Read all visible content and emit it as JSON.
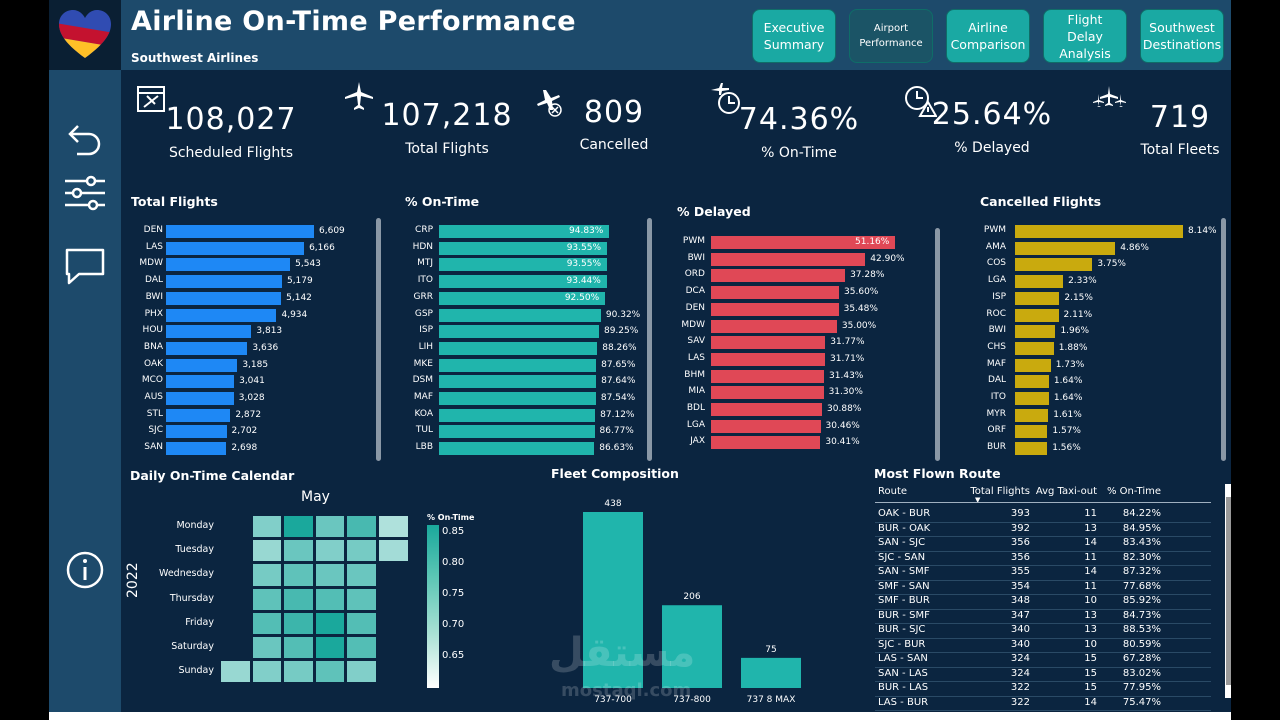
{
  "header": {
    "title": "Airline On-Time Performance",
    "subtitle": "Southwest Airlines",
    "nav": [
      "Executive Summary",
      "Airport Performance",
      "Airline Comparison",
      "Flight Delay Analysis",
      "Southwest Destinations"
    ],
    "active_nav": "Airport Performance"
  },
  "kpis": {
    "scheduled": {
      "value": "108,027",
      "label": "Scheduled Flights"
    },
    "total": {
      "value": "107,218",
      "label": "Total Flights"
    },
    "cancelled": {
      "value": "809",
      "label": "Cancelled"
    },
    "ontime": {
      "value": "74.36%",
      "label": "% On-Time"
    },
    "delayed": {
      "value": "25.64%",
      "label": "% Delayed"
    },
    "fleets": {
      "value": "719",
      "label": "Total Fleets"
    }
  },
  "panels": {
    "total_flights": {
      "title": "Total Flights",
      "color": "#1e88f5",
      "max": 6609,
      "rows": [
        [
          "DEN",
          6609,
          "6,609"
        ],
        [
          "LAS",
          6166,
          "6,166"
        ],
        [
          "MDW",
          5543,
          "5,543"
        ],
        [
          "DAL",
          5179,
          "5,179"
        ],
        [
          "BWI",
          5142,
          "5,142"
        ],
        [
          "PHX",
          4934,
          "4,934"
        ],
        [
          "HOU",
          3813,
          "3,813"
        ],
        [
          "BNA",
          3636,
          "3,636"
        ],
        [
          "OAK",
          3185,
          "3,185"
        ],
        [
          "MCO",
          3041,
          "3,041"
        ],
        [
          "AUS",
          3028,
          "3,028"
        ],
        [
          "STL",
          2872,
          "2,872"
        ],
        [
          "SJC",
          2702,
          "2,702"
        ],
        [
          "SAN",
          2698,
          "2,698"
        ]
      ]
    },
    "pct_ontime": {
      "title": "% On-Time",
      "color": "#20b5ac",
      "max": 94.83,
      "rows": [
        [
          "CRP",
          94.83,
          "94.83%"
        ],
        [
          "HDN",
          93.55,
          "93.55%"
        ],
        [
          "MTJ",
          93.55,
          "93.55%"
        ],
        [
          "ITO",
          93.44,
          "93.44%"
        ],
        [
          "GRR",
          92.5,
          "92.50%"
        ],
        [
          "GSP",
          90.32,
          "90.32%"
        ],
        [
          "ISP",
          89.25,
          "89.25%"
        ],
        [
          "LIH",
          88.26,
          "88.26%"
        ],
        [
          "MKE",
          87.65,
          "87.65%"
        ],
        [
          "DSM",
          87.64,
          "87.64%"
        ],
        [
          "MAF",
          87.54,
          "87.54%"
        ],
        [
          "KOA",
          87.12,
          "87.12%"
        ],
        [
          "TUL",
          86.77,
          "86.77%"
        ],
        [
          "LBB",
          86.63,
          "86.63%"
        ]
      ]
    },
    "pct_delayed": {
      "title": "% Delayed",
      "color": "#e04856",
      "max": 51.16,
      "rows": [
        [
          "PWM",
          51.16,
          "51.16%"
        ],
        [
          "BWI",
          42.9,
          "42.90%"
        ],
        [
          "ORD",
          37.28,
          "37.28%"
        ],
        [
          "DCA",
          35.6,
          "35.60%"
        ],
        [
          "DEN",
          35.48,
          "35.48%"
        ],
        [
          "MDW",
          35.0,
          "35.00%"
        ],
        [
          "SAV",
          31.77,
          "31.77%"
        ],
        [
          "LAS",
          31.71,
          "31.71%"
        ],
        [
          "BHM",
          31.43,
          "31.43%"
        ],
        [
          "MIA",
          31.3,
          "31.30%"
        ],
        [
          "BDL",
          30.88,
          "30.88%"
        ],
        [
          "LGA",
          30.46,
          "30.46%"
        ],
        [
          "JAX",
          30.41,
          "30.41%"
        ]
      ]
    },
    "cancelled": {
      "title": "Cancelled Flights",
      "color": "#c9aa0e",
      "max": 8.14,
      "rows": [
        [
          "PWM",
          8.14,
          "8.14%"
        ],
        [
          "AMA",
          4.86,
          "4.86%"
        ],
        [
          "COS",
          3.75,
          "3.75%"
        ],
        [
          "LGA",
          2.33,
          "2.33%"
        ],
        [
          "ISP",
          2.15,
          "2.15%"
        ],
        [
          "ROC",
          2.11,
          "2.11%"
        ],
        [
          "BWI",
          1.96,
          "1.96%"
        ],
        [
          "CHS",
          1.88,
          "1.88%"
        ],
        [
          "MAF",
          1.73,
          "1.73%"
        ],
        [
          "DAL",
          1.64,
          "1.64%"
        ],
        [
          "ITO",
          1.64,
          "1.64%"
        ],
        [
          "MYR",
          1.61,
          "1.61%"
        ],
        [
          "ORF",
          1.57,
          "1.57%"
        ],
        [
          "BUR",
          1.56,
          "1.56%"
        ]
      ]
    }
  },
  "calendar": {
    "title": "Daily On-Time Calendar",
    "month": "May",
    "year": "2022",
    "days": [
      "Monday",
      "Tuesday",
      "Wednesday",
      "Thursday",
      "Friday",
      "Saturday",
      "Sunday"
    ],
    "legend_title": "% On-Time",
    "legend_ticks": [
      "0.85",
      "0.80",
      "0.75",
      "0.70",
      "0.65"
    ],
    "weeks": [
      [
        null,
        null,
        null,
        null,
        null,
        null,
        0.74
      ],
      [
        0.76,
        0.74,
        0.77,
        0.79,
        0.8,
        0.78,
        0.76
      ],
      [
        0.85,
        0.78,
        0.79,
        0.81,
        0.82,
        0.8,
        0.77
      ],
      [
        0.78,
        0.76,
        0.78,
        0.8,
        0.85,
        0.86,
        0.79
      ],
      [
        0.81,
        0.77,
        0.78,
        0.79,
        0.8,
        0.8,
        0.76
      ],
      [
        0.72,
        0.73,
        null,
        null,
        null,
        null,
        null
      ]
    ]
  },
  "chart_data": {
    "type": "bar",
    "title": "Fleet Composition",
    "categories": [
      "737-700",
      "737-800",
      "737 8 MAX"
    ],
    "values": [
      438,
      206,
      75
    ],
    "ylim": [
      0,
      438
    ]
  },
  "table": {
    "title": "Most Flown Route",
    "headers": [
      "Route",
      "Total Flights",
      "Avg Taxi-out",
      "% On-Time"
    ],
    "rows": [
      [
        "OAK - BUR",
        "393",
        "11",
        "84.22%"
      ],
      [
        "BUR - OAK",
        "392",
        "13",
        "84.95%"
      ],
      [
        "SAN - SJC",
        "356",
        "14",
        "83.43%"
      ],
      [
        "SJC - SAN",
        "356",
        "11",
        "82.30%"
      ],
      [
        "SAN - SMF",
        "355",
        "14",
        "87.32%"
      ],
      [
        "SMF - SAN",
        "354",
        "11",
        "77.68%"
      ],
      [
        "SMF - BUR",
        "348",
        "10",
        "85.92%"
      ],
      [
        "BUR - SMF",
        "347",
        "13",
        "84.73%"
      ],
      [
        "BUR - SJC",
        "340",
        "13",
        "88.53%"
      ],
      [
        "SJC - BUR",
        "340",
        "10",
        "80.59%"
      ],
      [
        "LAS - SAN",
        "324",
        "15",
        "67.28%"
      ],
      [
        "SAN - LAS",
        "324",
        "15",
        "83.02%"
      ],
      [
        "BUR - LAS",
        "322",
        "15",
        "77.95%"
      ],
      [
        "LAS - BUR",
        "322",
        "14",
        "75.47%"
      ]
    ]
  },
  "watermark": "mostaql.com",
  "icons": {
    "back": "undo-arrow-icon",
    "filters": "sliders-icon",
    "comment": "comment-icon",
    "info": "info-icon"
  }
}
